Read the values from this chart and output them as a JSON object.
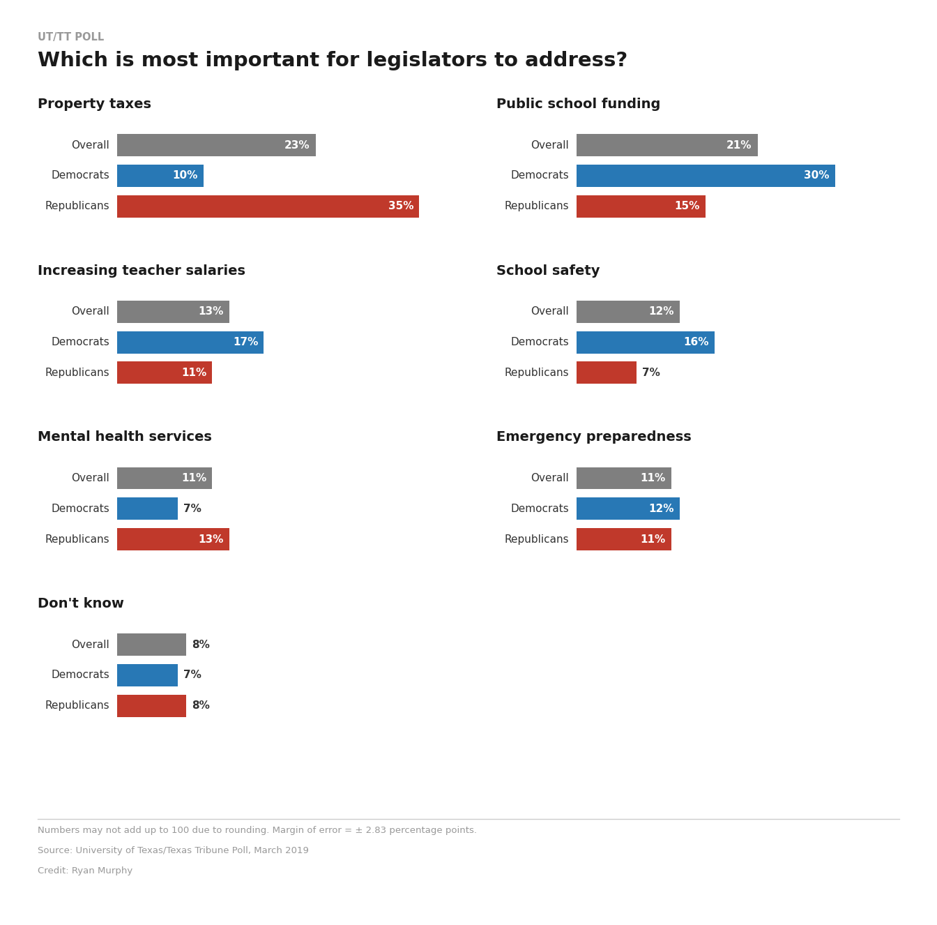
{
  "supertitle": "UT/TT POLL",
  "title": "Which is most important for legislators to address?",
  "overall_color": "#7f7f7f",
  "democrat_color": "#2878b5",
  "republican_color": "#c0392b",
  "panels": [
    {
      "title": "Property taxes",
      "col": 0,
      "row": 0,
      "bars": [
        {
          "label": "Overall",
          "value": 23,
          "color": "#7f7f7f"
        },
        {
          "label": "Democrats",
          "value": 10,
          "color": "#2878b5"
        },
        {
          "label": "Republicans",
          "value": 35,
          "color": "#c0392b"
        }
      ]
    },
    {
      "title": "Public school funding",
      "col": 1,
      "row": 0,
      "bars": [
        {
          "label": "Overall",
          "value": 21,
          "color": "#7f7f7f"
        },
        {
          "label": "Democrats",
          "value": 30,
          "color": "#2878b5"
        },
        {
          "label": "Republicans",
          "value": 15,
          "color": "#c0392b"
        }
      ]
    },
    {
      "title": "Increasing teacher salaries",
      "col": 0,
      "row": 1,
      "bars": [
        {
          "label": "Overall",
          "value": 13,
          "color": "#7f7f7f"
        },
        {
          "label": "Democrats",
          "value": 17,
          "color": "#2878b5"
        },
        {
          "label": "Republicans",
          "value": 11,
          "color": "#c0392b"
        }
      ]
    },
    {
      "title": "School safety",
      "col": 1,
      "row": 1,
      "bars": [
        {
          "label": "Overall",
          "value": 12,
          "color": "#7f7f7f"
        },
        {
          "label": "Democrats",
          "value": 16,
          "color": "#2878b5"
        },
        {
          "label": "Republicans",
          "value": 7,
          "color": "#c0392b"
        }
      ]
    },
    {
      "title": "Mental health services",
      "col": 0,
      "row": 2,
      "bars": [
        {
          "label": "Overall",
          "value": 11,
          "color": "#7f7f7f"
        },
        {
          "label": "Democrats",
          "value": 7,
          "color": "#2878b5"
        },
        {
          "label": "Republicans",
          "value": 13,
          "color": "#c0392b"
        }
      ]
    },
    {
      "title": "Emergency preparedness",
      "col": 1,
      "row": 2,
      "bars": [
        {
          "label": "Overall",
          "value": 11,
          "color": "#7f7f7f"
        },
        {
          "label": "Democrats",
          "value": 12,
          "color": "#2878b5"
        },
        {
          "label": "Republicans",
          "value": 11,
          "color": "#c0392b"
        }
      ]
    },
    {
      "title": "Don't know",
      "col": 0,
      "row": 3,
      "bars": [
        {
          "label": "Overall",
          "value": 8,
          "color": "#7f7f7f"
        },
        {
          "label": "Democrats",
          "value": 7,
          "color": "#2878b5"
        },
        {
          "label": "Republicans",
          "value": 8,
          "color": "#c0392b"
        }
      ]
    }
  ],
  "footnotes": [
    "Numbers may not add up to 100 due to rounding. Margin of error = ± 2.83 percentage points.",
    "Source: University of Texas/Texas Tribune Poll, March 2019",
    "Credit: Ryan Murphy"
  ],
  "max_val": 38,
  "bar_height": 0.52,
  "bar_fontsize": 11,
  "label_fontsize": 11,
  "title_fontsize": 13,
  "panel_title_fontsize": 14
}
